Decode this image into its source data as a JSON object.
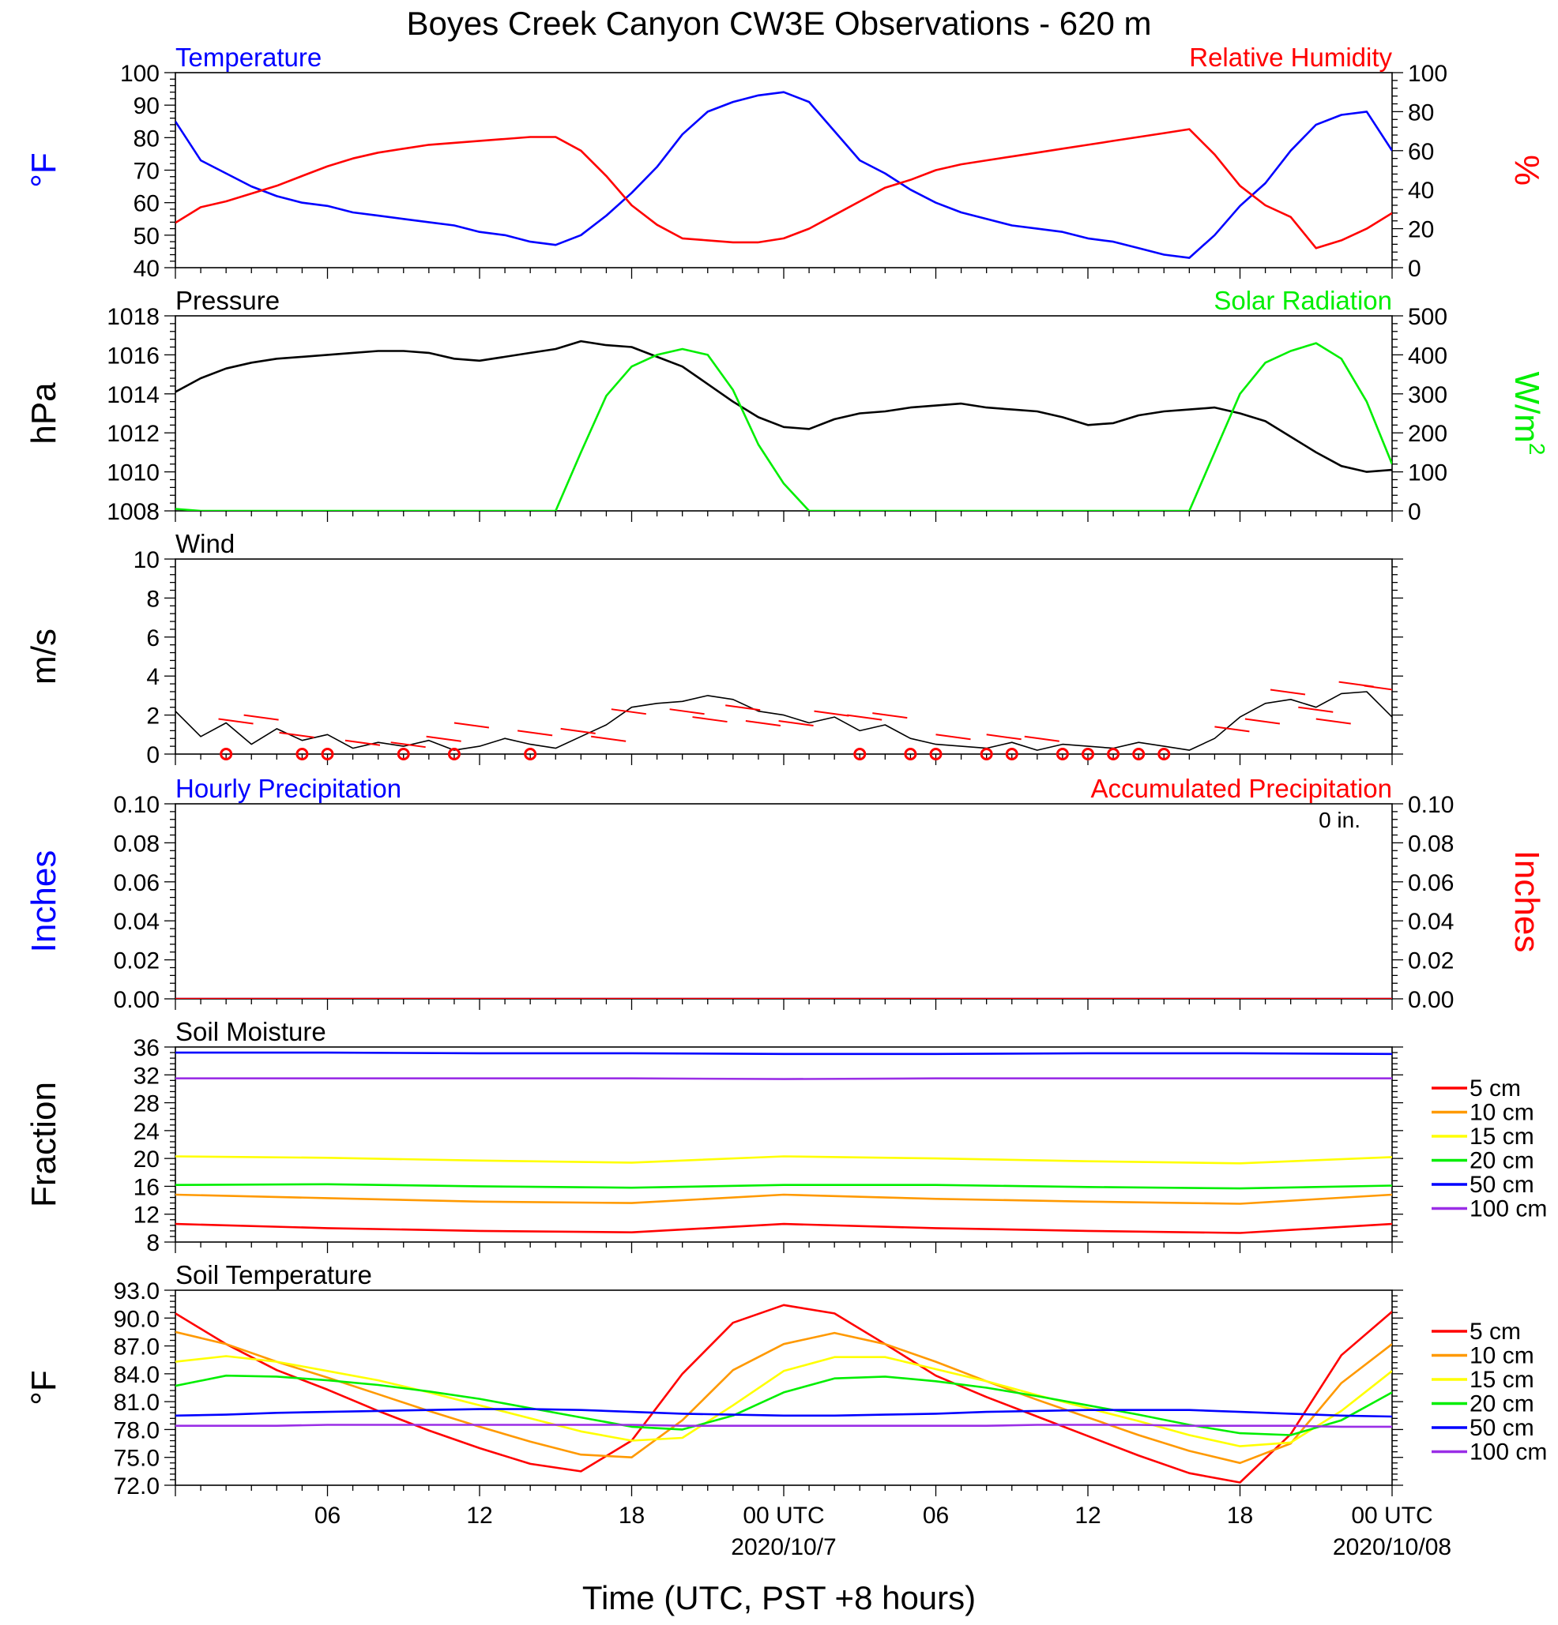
{
  "figure": {
    "title": "Boyes Creek Canyon CW3E Observations - 620 m",
    "xlabel": "Time (UTC, PST +8 hours)",
    "xticks": [
      "06",
      "12",
      "18",
      "00 UTC",
      "06",
      "12",
      "18",
      "00 UTC"
    ],
    "xtick_hours": [
      6,
      12,
      18,
      24,
      30,
      36,
      42,
      48
    ],
    "date_labels": [
      {
        "hour": 24,
        "text": "2020/10/7"
      },
      {
        "hour": 48,
        "text": "2020/10/08"
      }
    ],
    "x_range_hours": [
      0,
      48
    ],
    "colors": {
      "blue": "#0000ff",
      "red": "#ff0000",
      "green": "#00ee00",
      "black": "#000000",
      "orange": "#ff9900",
      "yellow": "#ffff00",
      "purple": "#9a2ee6"
    }
  },
  "chart_data": [
    {
      "type": "line",
      "id": "temp_rh",
      "title_left": "Temperature",
      "title_right": "Relative Humidity",
      "ylabel_left": "°F",
      "ylabel_right": "%",
      "ylim_left": [
        40,
        100
      ],
      "ylim_right": [
        0,
        100
      ],
      "yticks_left": [
        40,
        50,
        60,
        70,
        80,
        90,
        100
      ],
      "yticks_right": [
        0,
        20,
        40,
        60,
        80,
        100
      ],
      "x_hours": [
        0,
        1,
        2,
        3,
        4,
        5,
        6,
        7,
        8,
        9,
        10,
        11,
        12,
        13,
        14,
        15,
        16,
        17,
        18,
        19,
        20,
        21,
        22,
        23,
        24,
        25,
        26,
        27,
        28,
        29,
        30,
        31,
        32,
        33,
        34,
        35,
        36,
        37,
        38,
        39,
        40,
        41,
        42,
        43,
        44,
        45,
        46,
        47,
        48
      ],
      "series": [
        {
          "name": "Temperature",
          "axis": "left",
          "color": "#0000ff",
          "values": [
            85,
            73,
            69,
            65,
            62,
            60,
            59,
            57,
            56,
            55,
            54,
            53,
            51,
            50,
            48,
            47,
            50,
            56,
            63,
            71,
            81,
            88,
            91,
            93,
            94,
            91,
            82,
            73,
            69,
            64,
            60,
            57,
            55,
            53,
            52,
            51,
            49,
            48,
            46,
            44,
            43,
            50,
            59,
            66,
            76,
            84,
            87,
            88,
            76
          ]
        },
        {
          "name": "Relative Humidity",
          "axis": "right",
          "color": "#ff0000",
          "values": [
            23,
            31,
            34,
            38,
            42,
            47,
            52,
            56,
            59,
            61,
            63,
            64,
            65,
            66,
            67,
            67,
            60,
            47,
            32,
            22,
            15,
            14,
            13,
            13,
            15,
            20,
            27,
            34,
            41,
            45,
            50,
            53,
            55,
            57,
            59,
            61,
            63,
            65,
            67,
            69,
            71,
            58,
            42,
            32,
            26,
            10,
            14,
            20,
            28
          ]
        }
      ]
    },
    {
      "type": "line",
      "id": "pressure_solar",
      "title_left": "Pressure",
      "title_right": "Solar Radiation",
      "ylabel_left": "hPa",
      "ylabel_right": "W/m",
      "ylabel_right_sup": "2",
      "ylim_left": [
        1008,
        1018
      ],
      "ylim_right": [
        0,
        500
      ],
      "yticks_left": [
        1008,
        1010,
        1012,
        1014,
        1016,
        1018
      ],
      "yticks_right": [
        0,
        100,
        200,
        300,
        400,
        500
      ],
      "x_hours": [
        0,
        1,
        2,
        3,
        4,
        5,
        6,
        7,
        8,
        9,
        10,
        11,
        12,
        13,
        14,
        15,
        16,
        17,
        18,
        19,
        20,
        21,
        22,
        23,
        24,
        25,
        26,
        27,
        28,
        29,
        30,
        31,
        32,
        33,
        34,
        35,
        36,
        37,
        38,
        39,
        40,
        41,
        42,
        43,
        44,
        45,
        46,
        47,
        48
      ],
      "series": [
        {
          "name": "Pressure",
          "axis": "left",
          "color": "#000000",
          "values": [
            1014.1,
            1014.8,
            1015.3,
            1015.6,
            1015.8,
            1015.9,
            1016.0,
            1016.1,
            1016.2,
            1016.2,
            1016.1,
            1015.8,
            1015.7,
            1015.9,
            1016.1,
            1016.3,
            1016.7,
            1016.5,
            1016.4,
            1015.9,
            1015.4,
            1014.5,
            1013.6,
            1012.8,
            1012.3,
            1012.2,
            1012.7,
            1013.0,
            1013.1,
            1013.3,
            1013.4,
            1013.5,
            1013.3,
            1013.2,
            1013.1,
            1012.8,
            1012.4,
            1012.5,
            1012.9,
            1013.1,
            1013.2,
            1013.3,
            1013.0,
            1012.6,
            1011.8,
            1011.0,
            1010.3,
            1010.0,
            1010.1
          ]
        },
        {
          "name": "Solar Radiation",
          "axis": "right",
          "color": "#00ee00",
          "values": [
            5,
            0,
            0,
            0,
            0,
            0,
            0,
            0,
            0,
            0,
            0,
            0,
            0,
            0,
            0,
            0,
            150,
            295,
            370,
            400,
            415,
            400,
            310,
            170,
            70,
            0,
            0,
            0,
            0,
            0,
            0,
            0,
            0,
            0,
            0,
            0,
            0,
            0,
            0,
            0,
            0,
            150,
            300,
            380,
            410,
            430,
            390,
            280,
            120
          ]
        }
      ]
    },
    {
      "type": "line",
      "id": "wind",
      "title_left": "Wind",
      "ylabel_left": "m/s",
      "ylim_left": [
        0,
        10
      ],
      "yticks_left": [
        0,
        2,
        4,
        6,
        8,
        10
      ],
      "x_hours": [
        0,
        1,
        2,
        3,
        4,
        5,
        6,
        7,
        8,
        9,
        10,
        11,
        12,
        13,
        14,
        15,
        16,
        17,
        18,
        19,
        20,
        21,
        22,
        23,
        24,
        25,
        26,
        27,
        28,
        29,
        30,
        31,
        32,
        33,
        34,
        35,
        36,
        37,
        38,
        39,
        40,
        41,
        42,
        43,
        44,
        45,
        46,
        47,
        48
      ],
      "series": [
        {
          "name": "Wind Speed",
          "axis": "left",
          "color": "#000000",
          "values": [
            2.2,
            0.9,
            1.6,
            0.5,
            1.3,
            0.7,
            1.0,
            0.3,
            0.6,
            0.4,
            0.7,
            0.2,
            0.4,
            0.8,
            0.5,
            0.3,
            0.9,
            1.5,
            2.4,
            2.6,
            2.7,
            3.0,
            2.8,
            2.2,
            2.0,
            1.6,
            1.9,
            1.2,
            1.5,
            0.8,
            0.5,
            0.4,
            0.3,
            0.6,
            0.2,
            0.5,
            0.4,
            0.3,
            0.6,
            0.4,
            0.2,
            0.8,
            1.9,
            2.6,
            2.8,
            2.4,
            3.1,
            3.2,
            1.9
          ]
        }
      ],
      "calm_circles_hours": [
        2,
        5,
        6,
        9,
        11,
        14,
        27,
        29,
        30,
        32,
        33,
        35,
        36,
        37,
        38,
        39
      ],
      "barbs": [
        {
          "hour": 1.7,
          "speed": 1.8
        },
        {
          "hour": 2.7,
          "speed": 2.0
        },
        {
          "hour": 4.1,
          "speed": 1.1
        },
        {
          "hour": 6.7,
          "speed": 0.7
        },
        {
          "hour": 8.5,
          "speed": 0.6
        },
        {
          "hour": 9.9,
          "speed": 0.9
        },
        {
          "hour": 11.0,
          "speed": 1.6
        },
        {
          "hour": 13.5,
          "speed": 1.2
        },
        {
          "hour": 15.2,
          "speed": 1.3
        },
        {
          "hour": 16.4,
          "speed": 0.9
        },
        {
          "hour": 17.2,
          "speed": 2.3
        },
        {
          "hour": 19.5,
          "speed": 2.3
        },
        {
          "hour": 20.4,
          "speed": 1.9
        },
        {
          "hour": 21.7,
          "speed": 2.5
        },
        {
          "hour": 22.5,
          "speed": 1.7
        },
        {
          "hour": 23.8,
          "speed": 1.7
        },
        {
          "hour": 25.2,
          "speed": 2.2
        },
        {
          "hour": 26.5,
          "speed": 2.0
        },
        {
          "hour": 27.5,
          "speed": 2.1
        },
        {
          "hour": 30.0,
          "speed": 1.0
        },
        {
          "hour": 32.0,
          "speed": 1.0
        },
        {
          "hour": 33.5,
          "speed": 0.9
        },
        {
          "hour": 41.0,
          "speed": 1.4
        },
        {
          "hour": 42.2,
          "speed": 1.8
        },
        {
          "hour": 43.2,
          "speed": 3.3
        },
        {
          "hour": 44.3,
          "speed": 2.4
        },
        {
          "hour": 45.0,
          "speed": 1.8
        },
        {
          "hour": 45.9,
          "speed": 3.7
        },
        {
          "hour": 46.9,
          "speed": 3.5
        }
      ]
    },
    {
      "type": "line",
      "id": "precip",
      "title_left": "Hourly Precipitation",
      "title_right": "Accumulated Precipitation",
      "annotation": "0 in.",
      "ylabel_left": "Inches",
      "ylabel_right": "Inches",
      "ylim_left": [
        0,
        0.1
      ],
      "ylim_right": [
        0,
        0.1
      ],
      "yticks_left": [
        "0.00",
        "0.02",
        "0.04",
        "0.06",
        "0.08",
        "0.10"
      ],
      "yticks_right": [
        "0.00",
        "0.02",
        "0.04",
        "0.06",
        "0.08",
        "0.10"
      ],
      "x_hours": [
        0,
        48
      ],
      "series": [
        {
          "name": "Hourly Precipitation",
          "axis": "left",
          "color": "#0000ff",
          "values": [
            0,
            0
          ]
        },
        {
          "name": "Accumulated Precipitation",
          "axis": "right",
          "color": "#ff0000",
          "values": [
            0,
            0
          ]
        }
      ]
    },
    {
      "type": "line",
      "id": "soil_moisture",
      "title_left": "Soil Moisture",
      "ylabel_left": "Fraction",
      "ylim_left": [
        8,
        36
      ],
      "yticks_left": [
        8,
        12,
        16,
        20,
        24,
        28,
        32,
        36
      ],
      "x_hours": [
        0,
        6,
        12,
        18,
        24,
        30,
        36,
        42,
        48
      ],
      "legend": [
        "5 cm",
        "10 cm",
        "15 cm",
        "20 cm",
        "50 cm",
        "100 cm"
      ],
      "series": [
        {
          "name": "5 cm",
          "color": "#ff0000",
          "values": [
            10.6,
            10.0,
            9.6,
            9.4,
            10.6,
            10.0,
            9.6,
            9.3,
            10.6
          ]
        },
        {
          "name": "10 cm",
          "color": "#ff9900",
          "values": [
            14.8,
            14.3,
            13.8,
            13.6,
            14.8,
            14.2,
            13.8,
            13.5,
            14.8
          ]
        },
        {
          "name": "15 cm",
          "color": "#ffff00",
          "values": [
            20.3,
            20.1,
            19.7,
            19.4,
            20.3,
            20.0,
            19.6,
            19.3,
            20.2
          ]
        },
        {
          "name": "20 cm",
          "color": "#00ee00",
          "values": [
            16.2,
            16.3,
            16.0,
            15.8,
            16.2,
            16.2,
            15.9,
            15.7,
            16.1
          ]
        },
        {
          "name": "50 cm",
          "color": "#0000ff",
          "values": [
            35.2,
            35.2,
            35.1,
            35.1,
            35.0,
            35.0,
            35.1,
            35.1,
            35.0
          ]
        },
        {
          "name": "100 cm",
          "color": "#9a2ee6",
          "values": [
            31.5,
            31.5,
            31.5,
            31.5,
            31.4,
            31.5,
            31.5,
            31.5,
            31.5
          ]
        }
      ]
    },
    {
      "type": "line",
      "id": "soil_temperature",
      "title_left": "Soil Temperature",
      "ylabel_left": "°F",
      "ylim_left": [
        72,
        93
      ],
      "yticks_left": [
        "72.0",
        "75.0",
        "78.0",
        "81.0",
        "84.0",
        "87.0",
        "90.0",
        "93.0"
      ],
      "x_hours": [
        0,
        2,
        4,
        6,
        8,
        10,
        12,
        14,
        16,
        18,
        20,
        22,
        24,
        26,
        28,
        30,
        32,
        34,
        36,
        38,
        40,
        42,
        44,
        46,
        48
      ],
      "legend": [
        "5 cm",
        "10 cm",
        "15 cm",
        "20 cm",
        "50 cm",
        "100 cm"
      ],
      "series": [
        {
          "name": "5 cm",
          "color": "#ff0000",
          "values": [
            90.5,
            87.2,
            84.4,
            82.3,
            80.0,
            77.9,
            76.0,
            74.3,
            73.5,
            76.8,
            84.0,
            89.5,
            91.4,
            90.5,
            87.2,
            83.8,
            81.5,
            79.4,
            77.3,
            75.2,
            73.3,
            72.3,
            77.5,
            86.0,
            90.7
          ]
        },
        {
          "name": "10 cm",
          "color": "#ff9900",
          "values": [
            88.5,
            87.2,
            85.3,
            83.6,
            81.8,
            80.0,
            78.3,
            76.7,
            75.3,
            75.0,
            79.0,
            84.4,
            87.2,
            88.4,
            87.2,
            85.3,
            83.2,
            81.2,
            79.3,
            77.4,
            75.7,
            74.4,
            76.5,
            83.0,
            87.2
          ]
        },
        {
          "name": "15 cm",
          "color": "#ffff00",
          "values": [
            85.3,
            85.9,
            85.3,
            84.3,
            83.3,
            82.0,
            80.6,
            79.2,
            77.8,
            76.8,
            77.1,
            80.6,
            84.3,
            85.8,
            85.8,
            84.5,
            83.2,
            81.7,
            80.3,
            78.9,
            77.4,
            76.2,
            76.6,
            80.0,
            84.3
          ]
        },
        {
          "name": "20 cm",
          "color": "#00ee00",
          "values": [
            82.7,
            83.8,
            83.7,
            83.3,
            82.8,
            82.1,
            81.3,
            80.3,
            79.3,
            78.3,
            78.0,
            79.5,
            82.0,
            83.5,
            83.7,
            83.2,
            82.5,
            81.6,
            80.6,
            79.6,
            78.5,
            77.6,
            77.4,
            79.0,
            82.0
          ]
        },
        {
          "name": "50 cm",
          "color": "#0000ff",
          "values": [
            79.5,
            79.6,
            79.8,
            79.9,
            80.0,
            80.1,
            80.2,
            80.2,
            80.1,
            79.9,
            79.7,
            79.6,
            79.5,
            79.5,
            79.6,
            79.7,
            79.9,
            80.0,
            80.1,
            80.1,
            80.1,
            79.9,
            79.7,
            79.5,
            79.4
          ]
        },
        {
          "name": "100 cm",
          "color": "#9a2ee6",
          "values": [
            78.4,
            78.4,
            78.4,
            78.5,
            78.5,
            78.5,
            78.5,
            78.5,
            78.5,
            78.5,
            78.4,
            78.4,
            78.4,
            78.4,
            78.4,
            78.4,
            78.4,
            78.5,
            78.5,
            78.5,
            78.4,
            78.4,
            78.4,
            78.3,
            78.3
          ]
        }
      ]
    }
  ]
}
